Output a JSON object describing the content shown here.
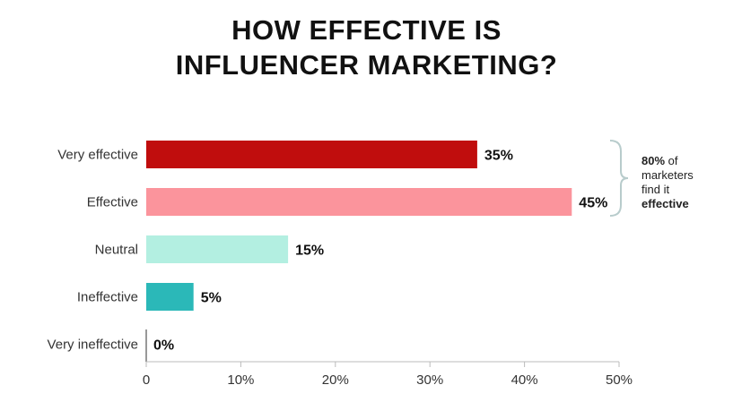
{
  "chart_data": {
    "type": "bar",
    "orientation": "horizontal",
    "title_lines": [
      "HOW EFFECTIVE IS",
      "INFLUENCER MARKETING?"
    ],
    "categories": [
      "Very effective",
      "Effective",
      "Neutral",
      "Ineffective",
      "Very ineffective"
    ],
    "values": [
      35,
      45,
      15,
      5,
      0
    ],
    "value_labels": [
      "35%",
      "45%",
      "15%",
      "5%",
      "0%"
    ],
    "colors": [
      "#c00d0d",
      "#fb949c",
      "#b3efe1",
      "#2bb8b8",
      "#2bb8b8"
    ],
    "xlim": [
      0,
      50
    ],
    "xticks": [
      0,
      10,
      20,
      30,
      40,
      50
    ],
    "xtick_labels": [
      "0",
      "10%",
      "20%",
      "30%",
      "40%",
      "50%"
    ],
    "grid": false,
    "annotation": {
      "highlight": "80%",
      "text_1": " of",
      "text_2": "marketers",
      "text_3": "find it",
      "emphasis": "effective",
      "bracket_color": "#b8cccc"
    }
  }
}
